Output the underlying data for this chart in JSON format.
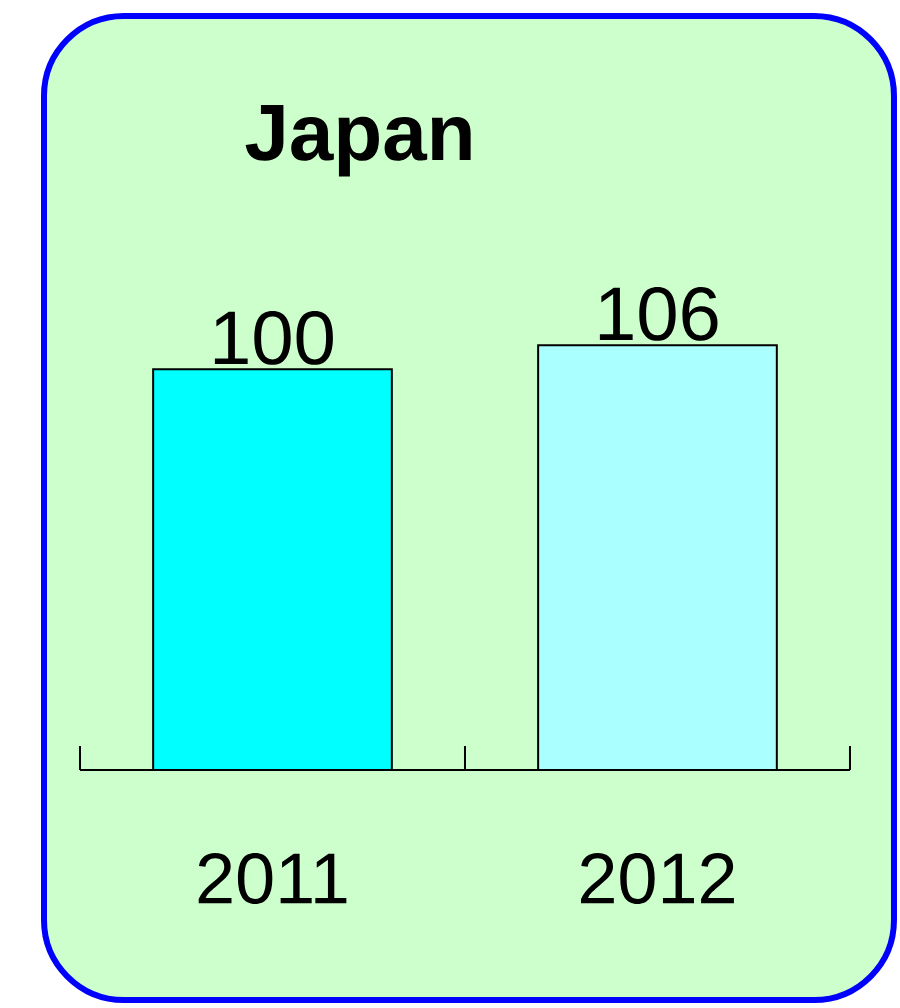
{
  "chart_data": {
    "type": "bar",
    "title": "Japan",
    "categories": [
      "2011",
      "2012"
    ],
    "values": [
      100,
      106
    ],
    "colors": [
      "#00ffff",
      "#aaffff"
    ],
    "data_labels": true
  }
}
